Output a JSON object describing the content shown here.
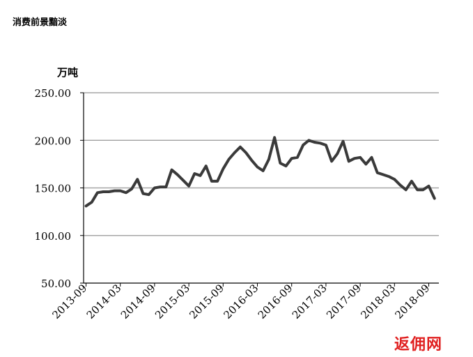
{
  "header": {
    "title": "消费前景黯淡"
  },
  "watermark": {
    "text": "返佣网"
  },
  "colors": {
    "line": "#3a3a3a",
    "grid": "#a6a6a6",
    "axis": "#000000",
    "watermark": "#e02020"
  },
  "chart_data": {
    "type": "line",
    "title": "",
    "ylabel": "万吨",
    "xlabel": "",
    "ylim": [
      50,
      250
    ],
    "yticks": [
      50,
      100,
      150,
      200,
      250
    ],
    "ytick_labels": [
      "50.00",
      "100.00",
      "150.00",
      "200.00",
      "250.00"
    ],
    "xtick_labels": [
      "2013-09",
      "2014-03",
      "2014-09",
      "2015-03",
      "2015-09",
      "2016-03",
      "2016-09",
      "2017-03",
      "2017-09",
      "2018-03",
      "2018-09"
    ],
    "grid": true,
    "legend": "none",
    "x": [
      "2013-09",
      "2013-10",
      "2013-11",
      "2013-12",
      "2014-01",
      "2014-02",
      "2014-03",
      "2014-04",
      "2014-05",
      "2014-06",
      "2014-07",
      "2014-08",
      "2014-09",
      "2014-10",
      "2014-11",
      "2014-12",
      "2015-01",
      "2015-02",
      "2015-03",
      "2015-04",
      "2015-05",
      "2015-06",
      "2015-07",
      "2015-08",
      "2015-09",
      "2015-10",
      "2015-11",
      "2015-12",
      "2016-01",
      "2016-02",
      "2016-03",
      "2016-04",
      "2016-05",
      "2016-06",
      "2016-07",
      "2016-08",
      "2016-09",
      "2016-10",
      "2016-11",
      "2016-12",
      "2017-01",
      "2017-02",
      "2017-03",
      "2017-04",
      "2017-05",
      "2017-06",
      "2017-07",
      "2017-08",
      "2017-09",
      "2017-10",
      "2017-11",
      "2017-12",
      "2018-01",
      "2018-02",
      "2018-03",
      "2018-04",
      "2018-05",
      "2018-06",
      "2018-07",
      "2018-08",
      "2018-09",
      "2018-10"
    ],
    "series": [
      {
        "values": [
          131,
          135,
          145,
          146,
          146,
          147,
          147,
          145,
          149,
          159,
          144,
          143,
          150,
          151,
          151,
          169,
          164,
          158,
          152,
          165,
          163,
          173,
          157,
          157,
          170,
          180,
          187,
          193,
          187,
          179,
          172,
          168,
          180,
          203,
          176,
          173,
          181,
          182,
          195,
          200,
          198,
          197,
          195,
          178,
          186,
          199,
          178,
          181,
          182,
          175,
          182,
          166,
          164,
          162,
          159,
          153,
          148,
          157,
          148,
          148,
          152,
          139
        ]
      }
    ]
  }
}
